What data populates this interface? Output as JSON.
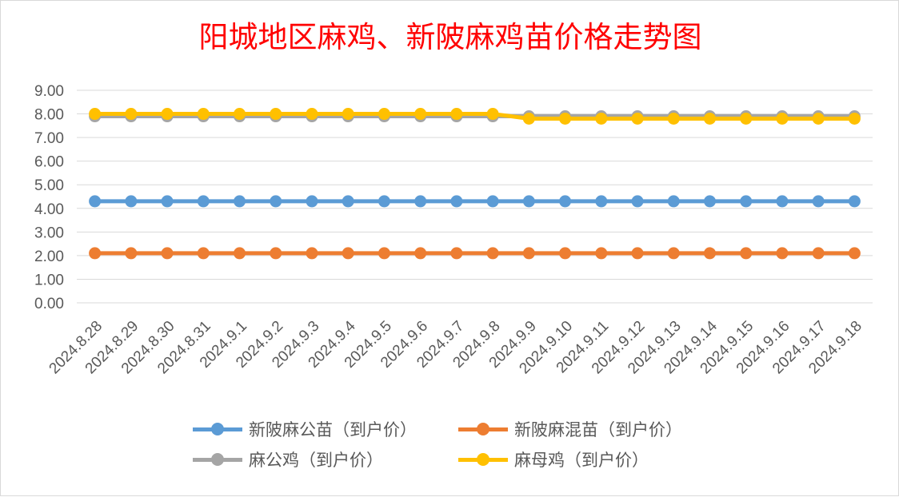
{
  "chart_data": {
    "type": "line",
    "title": "阳城地区麻鸡、新陂麻鸡苗价格走势图",
    "xlabel": "",
    "ylabel": "",
    "ylim": [
      0,
      9
    ],
    "yticks": [
      "0.00",
      "1.00",
      "2.00",
      "3.00",
      "4.00",
      "5.00",
      "6.00",
      "7.00",
      "8.00",
      "9.00"
    ],
    "grid": "horizontal",
    "legend_position": "bottom",
    "categories": [
      "2024.8.28",
      "2024.8.29",
      "2024.8.30",
      "2024.8.31",
      "2024.9.1",
      "2024.9.2",
      "2024.9.3",
      "2024.9.4",
      "2024.9.5",
      "2024.9.6",
      "2024.9.7",
      "2024.9.8",
      "2024.9.9",
      "2024.9.10",
      "2024.9.11",
      "2024.9.12",
      "2024.9.13",
      "2024.9.14",
      "2024.9.15",
      "2024.9.16",
      "2024.9.17",
      "2024.9.18"
    ],
    "series": [
      {
        "name": "新陂麻公苗（到户价）",
        "color": "#5b9bd5",
        "values": [
          4.3,
          4.3,
          4.3,
          4.3,
          4.3,
          4.3,
          4.3,
          4.3,
          4.3,
          4.3,
          4.3,
          4.3,
          4.3,
          4.3,
          4.3,
          4.3,
          4.3,
          4.3,
          4.3,
          4.3,
          4.3,
          4.3
        ]
      },
      {
        "name": "新陂麻混苗（到户价）",
        "color": "#ed7d31",
        "values": [
          2.1,
          2.1,
          2.1,
          2.1,
          2.1,
          2.1,
          2.1,
          2.1,
          2.1,
          2.1,
          2.1,
          2.1,
          2.1,
          2.1,
          2.1,
          2.1,
          2.1,
          2.1,
          2.1,
          2.1,
          2.1,
          2.1
        ]
      },
      {
        "name": "麻公鸡（到户价）",
        "color": "#a5a5a5",
        "values": [
          7.9,
          7.9,
          7.9,
          7.9,
          7.9,
          7.9,
          7.9,
          7.9,
          7.9,
          7.9,
          7.9,
          7.9,
          7.9,
          7.9,
          7.9,
          7.9,
          7.9,
          7.9,
          7.9,
          7.9,
          7.9,
          7.9
        ]
      },
      {
        "name": "麻母鸡（到户价）",
        "color": "#ffc000",
        "values": [
          8.0,
          8.0,
          8.0,
          8.0,
          8.0,
          8.0,
          8.0,
          8.0,
          8.0,
          8.0,
          8.0,
          8.0,
          7.8,
          7.8,
          7.8,
          7.8,
          7.8,
          7.8,
          7.8,
          7.8,
          7.8,
          7.8
        ]
      }
    ]
  }
}
